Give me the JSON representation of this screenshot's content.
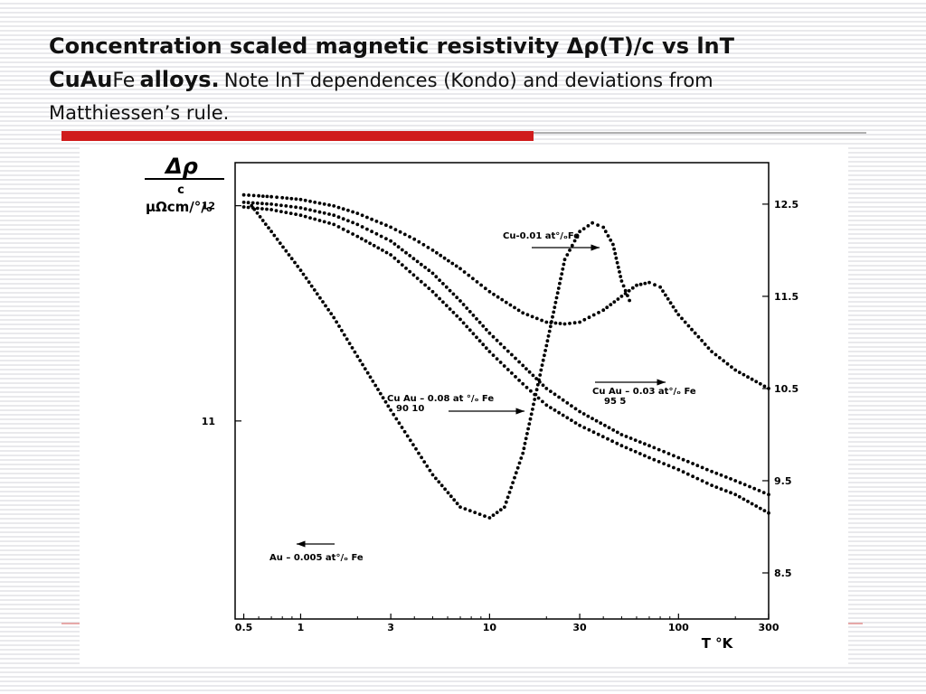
{
  "slide": {
    "title_bold_1": "Concentration scaled magnetic resistivity Δρ(T)/c vs lnT",
    "title_bold_2": "CuAu",
    "title_fe": "Fe",
    "title_bold_3": "alloys.",
    "note_1": "Note lnT dependences (Kondo) and deviations from",
    "note_2": "Matthiessen’s rule.",
    "accent_color": "#d01c1c"
  },
  "chart_data": {
    "type": "scatter",
    "title": "",
    "ylabel_top": "Δρ",
    "ylabel_mid": "c",
    "ylabel_units": "μΩcm/°/ₒ",
    "xlabel": "T °K",
    "x_scale": "log",
    "xlim": [
      0.45,
      300
    ],
    "x_ticks": [
      0.5,
      1,
      3,
      10,
      30,
      100,
      300
    ],
    "x_tick_labels": [
      "0.5",
      "1",
      "3",
      "10",
      "30",
      "100",
      "300"
    ],
    "right_axis": {
      "ylim": [
        8.0,
        12.95
      ],
      "ticks": [
        12.5,
        11.5,
        10.5,
        9.5,
        8.5
      ],
      "tick_labels": [
        "12.5",
        "11.5",
        "10.5",
        "9.5",
        "8.5"
      ]
    },
    "left_axis": {
      "ylim": [
        10.08,
        12.2
      ],
      "ticks": [
        12,
        11
      ],
      "tick_labels": [
        "12",
        "11"
      ]
    },
    "grid": false,
    "series": [
      {
        "name": "Cu-0.01 at %Fe",
        "axis": "right",
        "points": [
          [
            0.5,
            12.6
          ],
          [
            0.6,
            12.59
          ],
          [
            0.7,
            12.58
          ],
          [
            0.8,
            12.57
          ],
          [
            1.0,
            12.55
          ],
          [
            1.5,
            12.48
          ],
          [
            2.0,
            12.4
          ],
          [
            3.0,
            12.25
          ],
          [
            4.0,
            12.12
          ],
          [
            5.0,
            12.0
          ],
          [
            7.0,
            11.8
          ],
          [
            10.0,
            11.55
          ],
          [
            15.0,
            11.32
          ],
          [
            20.0,
            11.22
          ],
          [
            25.0,
            11.2
          ],
          [
            30.0,
            11.22
          ],
          [
            40.0,
            11.35
          ],
          [
            50.0,
            11.5
          ],
          [
            60.0,
            11.62
          ],
          [
            70.0,
            11.65
          ],
          [
            80.0,
            11.6
          ],
          [
            100.0,
            11.3
          ],
          [
            150.0,
            10.9
          ],
          [
            200.0,
            10.7
          ],
          [
            300.0,
            10.5
          ]
        ]
      },
      {
        "name": "Cu95 Au5 - 0.03 at %Fe",
        "axis": "right",
        "points": [
          [
            0.5,
            12.52
          ],
          [
            0.7,
            12.5
          ],
          [
            1.0,
            12.46
          ],
          [
            1.5,
            12.38
          ],
          [
            2.0,
            12.28
          ],
          [
            3.0,
            12.1
          ],
          [
            5.0,
            11.75
          ],
          [
            7.0,
            11.45
          ],
          [
            10.0,
            11.1
          ],
          [
            15.0,
            10.75
          ],
          [
            20.0,
            10.5
          ],
          [
            30.0,
            10.25
          ],
          [
            50.0,
            10.0
          ],
          [
            70.0,
            9.88
          ],
          [
            100.0,
            9.75
          ],
          [
            150.0,
            9.6
          ],
          [
            200.0,
            9.5
          ],
          [
            300.0,
            9.35
          ]
        ]
      },
      {
        "name": "Cu90 Au10 - 0.08 at %Fe",
        "axis": "right",
        "points": [
          [
            0.5,
            12.47
          ],
          [
            0.7,
            12.44
          ],
          [
            1.0,
            12.38
          ],
          [
            1.5,
            12.28
          ],
          [
            2.0,
            12.15
          ],
          [
            3.0,
            11.95
          ],
          [
            5.0,
            11.55
          ],
          [
            7.0,
            11.25
          ],
          [
            10.0,
            10.9
          ],
          [
            15.0,
            10.55
          ],
          [
            20.0,
            10.32
          ],
          [
            30.0,
            10.1
          ],
          [
            50.0,
            9.88
          ],
          [
            70.0,
            9.75
          ],
          [
            100.0,
            9.62
          ],
          [
            150.0,
            9.45
          ],
          [
            200.0,
            9.35
          ],
          [
            300.0,
            9.15
          ]
        ]
      },
      {
        "name": "Au - 0.005 at %Fe",
        "axis": "left",
        "points": [
          [
            0.55,
            12.0
          ],
          [
            0.7,
            11.88
          ],
          [
            1.0,
            11.7
          ],
          [
            1.5,
            11.48
          ],
          [
            2.0,
            11.3
          ],
          [
            3.0,
            11.05
          ],
          [
            5.0,
            10.75
          ],
          [
            7.0,
            10.6
          ],
          [
            10.0,
            10.55
          ],
          [
            12.0,
            10.6
          ],
          [
            15.0,
            10.85
          ],
          [
            20.0,
            11.35
          ],
          [
            25.0,
            11.75
          ],
          [
            30.0,
            11.88
          ],
          [
            35.0,
            11.92
          ],
          [
            40.0,
            11.9
          ],
          [
            45.0,
            11.82
          ],
          [
            50.0,
            11.65
          ],
          [
            55.0,
            11.56
          ]
        ]
      }
    ],
    "annotations": {
      "cu": "Cu-0.01 at°/ₒFe",
      "cuau95_main": "Cu   Au – 0.03 at°/ₒ Fe",
      "cuau95_sub": "95    5",
      "cuau90_main": "Cu   Au  –  0.08 at °/ₒ Fe",
      "cuau90_sub": "90    10",
      "au": "Au – 0.005 at°/ₒ Fe"
    }
  }
}
